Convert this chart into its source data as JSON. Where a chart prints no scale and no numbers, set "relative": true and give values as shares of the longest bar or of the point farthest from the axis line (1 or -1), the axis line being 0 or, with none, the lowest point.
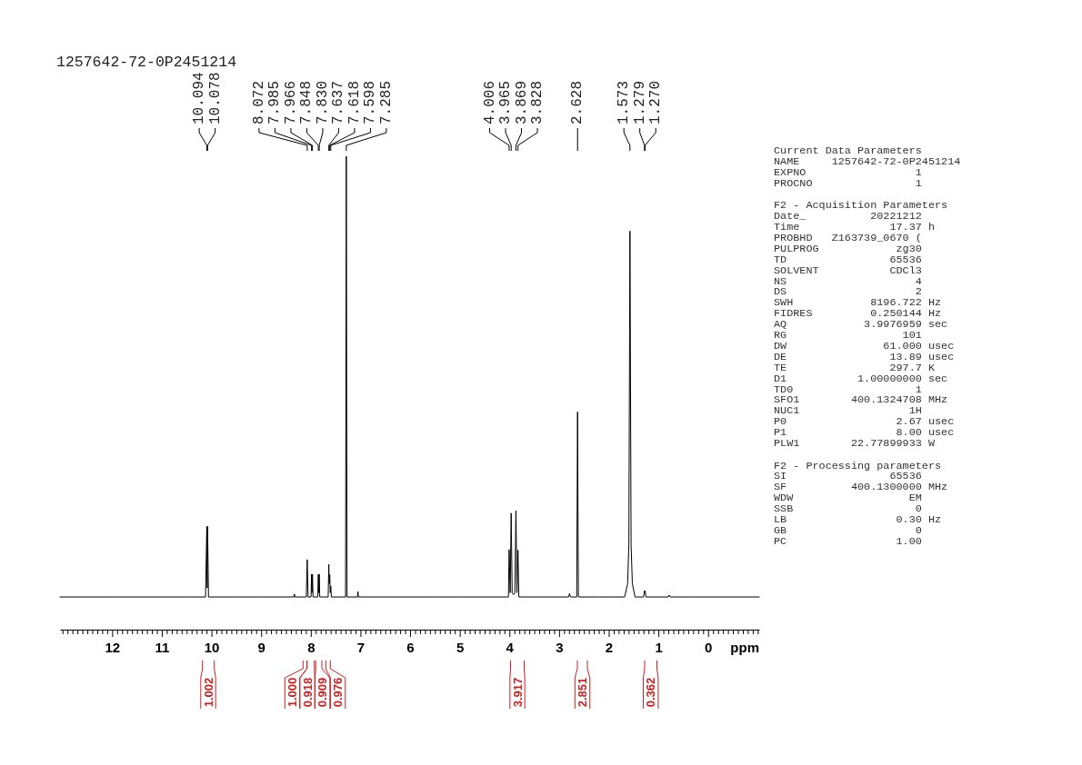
{
  "chart_data": [
    {
      "type": "line",
      "title": "1257642-72-0P2451214",
      "xlabel": "ppm",
      "relative": true,
      "xlim": [
        13.05,
        -1.03
      ],
      "xticks": [
        {
          "value": 13,
          "label": null
        },
        {
          "value": 12.9,
          "label": null
        },
        {
          "value": 12.8,
          "label": null
        },
        {
          "value": 12.7,
          "label": null
        },
        {
          "value": 12.6,
          "label": null
        },
        {
          "value": 12.5,
          "label": null
        },
        {
          "value": 12.4,
          "label": null
        },
        {
          "value": 12.3,
          "label": null
        },
        {
          "value": 12.2,
          "label": null
        },
        {
          "value": 12.1,
          "label": null
        },
        12,
        {
          "value": 11.9,
          "label": null
        },
        {
          "value": 11.8,
          "label": null
        },
        {
          "value": 11.7,
          "label": null
        },
        {
          "value": 11.6,
          "label": null
        },
        {
          "value": 11.5,
          "label": null
        },
        {
          "value": 11.4,
          "label": null
        },
        {
          "value": 11.3,
          "label": null
        },
        {
          "value": 11.2,
          "label": null
        },
        {
          "value": 11.1,
          "label": null
        },
        11,
        {
          "value": 10.9,
          "label": null
        },
        {
          "value": 10.8,
          "label": null
        },
        {
          "value": 10.7,
          "label": null
        },
        {
          "value": 10.6,
          "label": null
        },
        {
          "value": 10.5,
          "label": null
        },
        {
          "value": 10.4,
          "label": null
        },
        {
          "value": 10.3,
          "label": null
        },
        {
          "value": 10.2,
          "label": null
        },
        {
          "value": 10.1,
          "label": null
        },
        10,
        {
          "value": 9.9,
          "label": null
        },
        {
          "value": 9.8,
          "label": null
        },
        {
          "value": 9.7,
          "label": null
        },
        {
          "value": 9.6,
          "label": null
        },
        {
          "value": 9.5,
          "label": null
        },
        {
          "value": 9.4,
          "label": null
        },
        {
          "value": 9.3,
          "label": null
        },
        {
          "value": 9.2,
          "label": null
        },
        {
          "value": 9.1,
          "label": null
        },
        9,
        {
          "value": 8.9,
          "label": null
        },
        {
          "value": 8.8,
          "label": null
        },
        {
          "value": 8.7,
          "label": null
        },
        {
          "value": 8.6,
          "label": null
        },
        {
          "value": 8.5,
          "label": null
        },
        {
          "value": 8.4,
          "label": null
        },
        {
          "value": 8.3,
          "label": null
        },
        {
          "value": 8.2,
          "label": null
        },
        {
          "value": 8.1,
          "label": null
        },
        8,
        {
          "value": 7.9,
          "label": null
        },
        {
          "value": 7.8,
          "label": null
        },
        {
          "value": 7.7,
          "label": null
        },
        {
          "value": 7.6,
          "label": null
        },
        {
          "value": 7.5,
          "label": null
        },
        {
          "value": 7.4,
          "label": null
        },
        {
          "value": 7.3,
          "label": null
        },
        {
          "value": 7.2,
          "label": null
        },
        {
          "value": 7.1,
          "label": null
        },
        7,
        {
          "value": 6.9,
          "label": null
        },
        {
          "value": 6.8,
          "label": null
        },
        {
          "value": 6.7,
          "label": null
        },
        {
          "value": 6.6,
          "label": null
        },
        {
          "value": 6.5,
          "label": null
        },
        {
          "value": 6.4,
          "label": null
        },
        {
          "value": 6.3,
          "label": null
        },
        {
          "value": 6.2,
          "label": null
        },
        {
          "value": 6.1,
          "label": null
        },
        6,
        {
          "value": 5.9,
          "label": null
        },
        {
          "value": 5.8,
          "label": null
        },
        {
          "value": 5.7,
          "label": null
        },
        {
          "value": 5.6,
          "label": null
        },
        {
          "value": 5.5,
          "label": null
        },
        {
          "value": 5.4,
          "label": null
        },
        {
          "value": 5.3,
          "label": null
        },
        {
          "value": 5.2,
          "label": null
        },
        {
          "value": 5.1,
          "label": null
        },
        5,
        {
          "value": 4.9,
          "label": null
        },
        {
          "value": 4.8,
          "label": null
        },
        {
          "value": 4.7,
          "label": null
        },
        {
          "value": 4.6,
          "label": null
        },
        {
          "value": 4.5,
          "label": null
        },
        {
          "value": 4.4,
          "label": null
        },
        {
          "value": 4.3,
          "label": null
        },
        {
          "value": 4.2,
          "label": null
        },
        {
          "value": 4.1,
          "label": null
        },
        4,
        {
          "value": 3.9,
          "label": null
        },
        {
          "value": 3.8,
          "label": null
        },
        {
          "value": 3.7,
          "label": null
        },
        {
          "value": 3.6,
          "label": null
        },
        {
          "value": 3.5,
          "label": null
        },
        {
          "value": 3.4,
          "label": null
        },
        {
          "value": 3.3,
          "label": null
        },
        {
          "value": 3.2,
          "label": null
        },
        {
          "value": 3.1,
          "label": null
        },
        3,
        {
          "value": 2.9,
          "label": null
        },
        {
          "value": 2.8,
          "label": null
        },
        {
          "value": 2.7,
          "label": null
        },
        {
          "value": 2.6,
          "label": null
        },
        {
          "value": 2.5,
          "label": null
        },
        {
          "value": 2.4,
          "label": null
        },
        {
          "value": 2.3,
          "label": null
        },
        {
          "value": 2.2,
          "label": null
        },
        {
          "value": 2.1,
          "label": null
        },
        2,
        {
          "value": 1.9,
          "label": null
        },
        {
          "value": 1.8,
          "label": null
        },
        {
          "value": 1.7,
          "label": null
        },
        {
          "value": 1.6,
          "label": null
        },
        {
          "value": 1.5,
          "label": null
        },
        {
          "value": 1.4,
          "label": null
        },
        {
          "value": 1.3,
          "label": null
        },
        {
          "value": 1.2,
          "label": null
        },
        {
          "value": 1.1,
          "label": null
        },
        1,
        {
          "value": 0.9,
          "label": null
        },
        {
          "value": 0.8,
          "label": null
        },
        {
          "value": 0.7,
          "label": null
        },
        {
          "value": 0.6,
          "label": null
        },
        {
          "value": 0.5,
          "label": null
        },
        {
          "value": 0.4,
          "label": null
        },
        {
          "value": 0.3,
          "label": null
        },
        {
          "value": 0.2,
          "label": null
        },
        {
          "value": 0.1,
          "label": null
        },
        0,
        {
          "value": -0.1,
          "label": null
        },
        {
          "value": -0.2,
          "label": null
        },
        {
          "value": -0.3,
          "label": null
        },
        {
          "value": -0.4,
          "label": null
        },
        {
          "value": -0.5,
          "label": null
        },
        {
          "value": -0.6,
          "label": null
        },
        {
          "value": -0.7,
          "label": null
        },
        {
          "value": -0.8,
          "label": null
        },
        {
          "value": -0.9,
          "label": null
        },
        {
          "value": -1,
          "label": null
        }
      ],
      "x": [
        13.05,
        12.5,
        12.0,
        11.0,
        10.5,
        10.12,
        10.094,
        10.086,
        10.078,
        10.06,
        9.5,
        9.0,
        8.6,
        8.34,
        8.33,
        8.32,
        8.09,
        8.072,
        8.055,
        7.995,
        7.985,
        7.976,
        7.966,
        7.955,
        7.86,
        7.848,
        7.839,
        7.83,
        7.82,
        7.65,
        7.637,
        7.628,
        7.618,
        7.608,
        7.598,
        7.585,
        7.3,
        7.285,
        7.27,
        7.06,
        7.05,
        7.04,
        6.5,
        6.0,
        5.5,
        5.0,
        4.5,
        4.02,
        4.006,
        3.985,
        3.965,
        3.945,
        3.917,
        3.89,
        3.869,
        3.848,
        3.828,
        3.81,
        3.3,
        2.81,
        2.79,
        2.77,
        2.645,
        2.628,
        2.611,
        2.2,
        1.68,
        1.62,
        1.595,
        1.573,
        1.55,
        1.525,
        1.47,
        1.3,
        1.279,
        1.2745,
        1.27,
        1.25,
        0.8,
        0.78,
        0.76,
        0.3,
        -0.5,
        -1.03
      ],
      "values": [
        0.069,
        0.069,
        0.069,
        0.069,
        0.069,
        0.069,
        0.218,
        0.088,
        0.218,
        0.069,
        0.069,
        0.069,
        0.069,
        0.069,
        0.075,
        0.069,
        0.069,
        0.148,
        0.069,
        0.069,
        0.117,
        0.078,
        0.117,
        0.069,
        0.069,
        0.117,
        0.078,
        0.117,
        0.069,
        0.069,
        0.138,
        0.097,
        0.116,
        0.078,
        0.092,
        0.069,
        0.069,
        1,
        0.069,
        0.069,
        0.08,
        0.069,
        0.069,
        0.069,
        0.069,
        0.069,
        0.069,
        0.069,
        0.169,
        0.078,
        0.246,
        0.078,
        0.074,
        0.078,
        0.251,
        0.078,
        0.168,
        0.069,
        0.069,
        0.069,
        0.076,
        0.069,
        0.069,
        0.46,
        0.069,
        0.069,
        0.069,
        0.097,
        0.181,
        0.842,
        0.181,
        0.097,
        0.069,
        0.069,
        0.082,
        0.078,
        0.082,
        0.069,
        0.069,
        0.073,
        0.069,
        0.069,
        0.069,
        0.069
      ],
      "color": "#000000",
      "annotations": [
        {
          "text": "10.094",
          "x": 10.094
        },
        {
          "text": "10.078",
          "x": 10.078
        },
        {
          "text": "8.072",
          "x": 8.072
        },
        {
          "text": "7.985",
          "x": 7.985
        },
        {
          "text": "7.966",
          "x": 7.966
        },
        {
          "text": "7.848",
          "x": 7.848
        },
        {
          "text": "7.830",
          "x": 7.83
        },
        {
          "text": "7.637",
          "x": 7.637
        },
        {
          "text": "7.618",
          "x": 7.618
        },
        {
          "text": "7.598",
          "x": 7.598
        },
        {
          "text": "7.285",
          "x": 7.285
        },
        {
          "text": "4.006",
          "x": 4.006
        },
        {
          "text": "3.965",
          "x": 3.965
        },
        {
          "text": "3.869",
          "x": 3.869
        },
        {
          "text": "3.828",
          "x": 3.828
        },
        {
          "text": "2.628",
          "x": 2.628
        },
        {
          "text": "1.573",
          "x": 1.573
        },
        {
          "text": "1.279",
          "x": 1.279
        },
        {
          "text": "1.270",
          "x": 1.27
        },
        "1.002",
        "1.000",
        "0.918",
        "0.909",
        "0.976",
        "3.917",
        "2.851",
        "0.362"
      ]
    },
    {
      "type": "other",
      "title": "Current Data Parameters",
      "annotations": [
        "NAME     1257642-72-0P2451214",
        "EXPNO                 1",
        "PROCNO                1"
      ]
    },
    {
      "type": "other",
      "title": "F2 - Acquisition Parameters",
      "annotations": [
        "Date_          20221212",
        "Time              17.37 h",
        "PROBHD   Z163739_0670 (",
        "PULPROG            zg30",
        "TD                65536",
        "SOLVENT           CDCl3",
        "NS                    4",
        "DS                    2",
        "SWH            8196.722 Hz",
        "FIDRES         0.250144 Hz",
        "AQ            3.9976959 sec",
        "RG                  101",
        "DW               61.000 usec",
        "DE                13.89 usec",
        "TE                297.7 K",
        "D1           1.00000000 sec",
        "TD0                   1",
        "SFO1        400.1324708 MHz",
        "NUC1                 1H",
        "P0                 2.67 usec",
        "P1                 8.00 usec",
        "PLW1        22.77899933 W"
      ]
    },
    {
      "type": "other",
      "title": "F2 - Processing parameters",
      "annotations": [
        "SI                65536",
        "SF          400.1300000 MHz",
        "WDW                  EM",
        "SSB                   0",
        "LB                 0.30 Hz",
        "GB                    0",
        "PC                 1.00"
      ]
    }
  ]
}
